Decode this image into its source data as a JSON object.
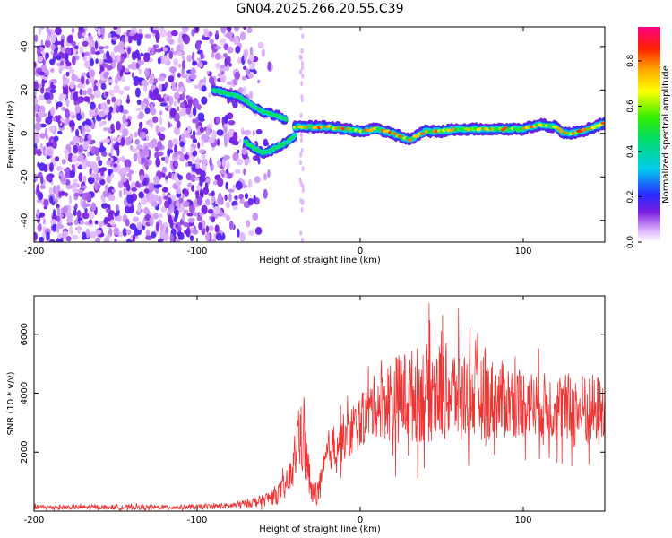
{
  "title": "GN04.2025.266.20.55.C39",
  "chart_data": [
    {
      "type": "heatmap",
      "name": "spectrogram",
      "xlabel": "Height of straight line (km)",
      "ylabel": "Frequency (Hz)",
      "xlim": [
        -200,
        150
      ],
      "ylim": [
        -50,
        49
      ],
      "xticks": [
        -200,
        -100,
        0,
        100
      ],
      "yticks": [
        -40,
        -20,
        0,
        20,
        40
      ],
      "colorbar": {
        "label": "Normalized spectral amplitude",
        "range": [
          0.0,
          0.95
        ],
        "ticks": [
          0.0,
          0.2,
          0.4,
          0.6,
          0.8
        ]
      },
      "ridge": {
        "upper_branch": [
          [
            -90,
            20
          ],
          [
            -80,
            18
          ],
          [
            -75,
            17
          ],
          [
            -70,
            15
          ],
          [
            -65,
            12
          ],
          [
            -60,
            10
          ],
          [
            -55,
            9
          ],
          [
            -50,
            8
          ],
          [
            -45,
            6
          ]
        ],
        "lower_branch": [
          [
            -70,
            -4
          ],
          [
            -65,
            -7
          ],
          [
            -60,
            -9
          ],
          [
            -55,
            -8
          ],
          [
            -50,
            -6
          ],
          [
            -45,
            -4
          ],
          [
            -40,
            -1
          ]
        ],
        "main": [
          [
            -40,
            3
          ],
          [
            -30,
            3
          ],
          [
            -20,
            3
          ],
          [
            -10,
            2
          ],
          [
            0,
            1
          ],
          [
            10,
            2
          ],
          [
            20,
            0
          ],
          [
            30,
            -3
          ],
          [
            40,
            1
          ],
          [
            50,
            1
          ],
          [
            60,
            2
          ],
          [
            70,
            2
          ],
          [
            80,
            2
          ],
          [
            90,
            2
          ],
          [
            100,
            2
          ],
          [
            110,
            4
          ],
          [
            120,
            3
          ],
          [
            125,
            0
          ],
          [
            130,
            0
          ],
          [
            140,
            2
          ],
          [
            150,
            5
          ]
        ]
      },
      "noise_region": [
        -200,
        -70
      ]
    },
    {
      "type": "line",
      "name": "snr",
      "xlabel": "Height of straight line (km)",
      "ylabel": "SNR (10 * v/v)",
      "xlim": [
        -200,
        150
      ],
      "ylim": [
        0,
        7300
      ],
      "xticks": [
        -200,
        -100,
        0,
        100
      ],
      "yticks": [
        2000,
        4000,
        6000
      ],
      "color": "#ee3333",
      "series": [
        {
          "name": "SNR",
          "envelope": {
            "x": [
              -200,
              -120,
              -100,
              -80,
              -70,
              -60,
              -50,
              -45,
              -40,
              -38,
              -35,
              -32,
              -30,
              -25,
              -20,
              -15,
              -10,
              -5,
              0,
              5,
              10,
              15,
              20,
              30,
              40,
              50,
              60,
              70,
              80,
              90,
              100,
              110,
              120,
              130,
              140,
              150
            ],
            "mean": [
              130,
              130,
              140,
              180,
              260,
              350,
              600,
              900,
              1600,
              2800,
              2300,
              1500,
              600,
              700,
              2000,
              2300,
              2500,
              2700,
              3000,
              3400,
              3600,
              3700,
              3800,
              3900,
              4000,
              4050,
              4000,
              3900,
              3800,
              3750,
              3700,
              3600,
              3500,
              3400,
              3400,
              3400
            ],
            "spread": [
              80,
              80,
              90,
              100,
              150,
              200,
              350,
              500,
              700,
              1000,
              1200,
              900,
              400,
              500,
              700,
              800,
              800,
              900,
              900,
              1000,
              1100,
              1300,
              1500,
              1600,
              1700,
              1700,
              1600,
              1500,
              1400,
              1300,
              1200,
              1100,
              1200,
              1300,
              1300,
              1200
            ]
          }
        }
      ]
    }
  ]
}
